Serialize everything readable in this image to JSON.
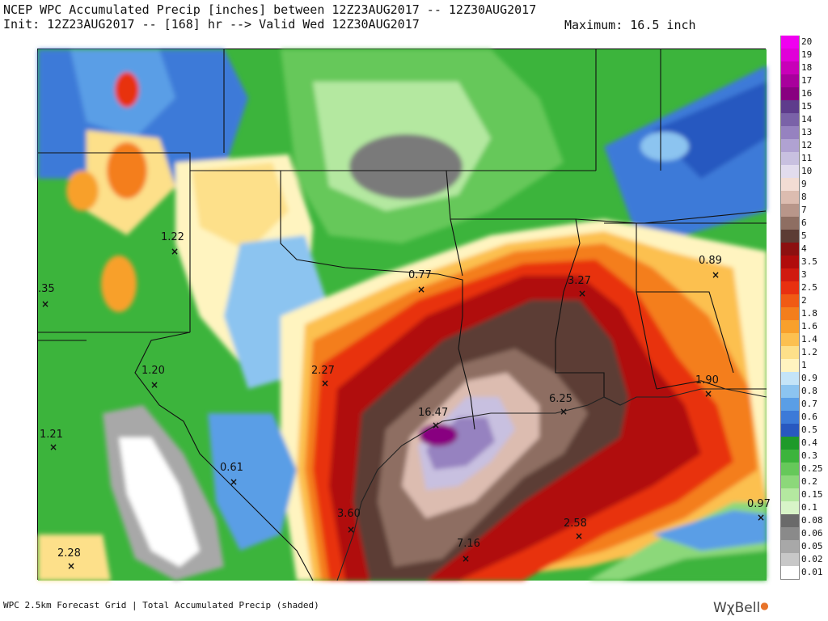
{
  "header": {
    "line1": "NCEP WPC Accumulated Precip [inches] between 12Z23AUG2017 -- 12Z30AUG2017",
    "line2": "Init: 12Z23AUG2017 -- [168] hr --> Valid Wed 12Z30AUG2017",
    "maximum": "Maximum: 16.5 inch"
  },
  "footer": {
    "text": "WPC 2.5km Forecast Grid | Total Accumulated Precip (shaded)",
    "brand": "WχBell"
  },
  "legend": [
    {
      "label": "20",
      "color": "#f000f0"
    },
    {
      "label": "19",
      "color": "#e000d8"
    },
    {
      "label": "18",
      "color": "#c800b8"
    },
    {
      "label": "17",
      "color": "#a8009c"
    },
    {
      "label": "16",
      "color": "#880080"
    },
    {
      "label": "15",
      "color": "#5e3c8c"
    },
    {
      "label": "14",
      "color": "#7a62a8"
    },
    {
      "label": "13",
      "color": "#9682c0"
    },
    {
      "label": "12",
      "color": "#b0a2d2"
    },
    {
      "label": "11",
      "color": "#c8c0e0"
    },
    {
      "label": "10",
      "color": "#e2dcee"
    },
    {
      "label": "9",
      "color": "#f2dcd4"
    },
    {
      "label": "8",
      "color": "#dcbcb0"
    },
    {
      "label": "7",
      "color": "#b8968a"
    },
    {
      "label": "6",
      "color": "#8e6e62"
    },
    {
      "label": "5",
      "color": "#5c3c34"
    },
    {
      "label": "4",
      "color": "#8c1010"
    },
    {
      "label": "3.5",
      "color": "#b00c0c"
    },
    {
      "label": "3",
      "color": "#d01a10"
    },
    {
      "label": "2.5",
      "color": "#e83010"
    },
    {
      "label": "2",
      "color": "#f05a14"
    },
    {
      "label": "1.8",
      "color": "#f47e1c"
    },
    {
      "label": "1.6",
      "color": "#f8a02c"
    },
    {
      "label": "1.4",
      "color": "#fcc050"
    },
    {
      "label": "1.2",
      "color": "#fde08a"
    },
    {
      "label": "1",
      "color": "#fff4c0"
    },
    {
      "label": "0.9",
      "color": "#c4e4f8"
    },
    {
      "label": "0.8",
      "color": "#8cc4f0"
    },
    {
      "label": "0.7",
      "color": "#5a9ee6"
    },
    {
      "label": "0.6",
      "color": "#3c7ad8"
    },
    {
      "label": "0.5",
      "color": "#2858c0"
    },
    {
      "label": "0.4",
      "color": "#1e9a2a"
    },
    {
      "label": "0.3",
      "color": "#3cb43c"
    },
    {
      "label": "0.25",
      "color": "#66c85a"
    },
    {
      "label": "0.2",
      "color": "#8cd87a"
    },
    {
      "label": "0.15",
      "color": "#b4e8a0"
    },
    {
      "label": "0.1",
      "color": "#d8f4c8"
    },
    {
      "label": "0.08",
      "color": "#6a6a6a"
    },
    {
      "label": "0.06",
      "color": "#8a8a8a"
    },
    {
      "label": "0.05",
      "color": "#a8a8a8"
    },
    {
      "label": "0.02",
      "color": "#c8c8c8"
    },
    {
      "label": "0.01",
      "color": "#ffffff"
    }
  ],
  "points": [
    {
      "label": "1.22"
    },
    {
      "label": ".35"
    },
    {
      "label": "0.77"
    },
    {
      "label": "3.27"
    },
    {
      "label": "0.89"
    },
    {
      "label": "1.20"
    },
    {
      "label": "2.27"
    },
    {
      "label": "1.90"
    },
    {
      "label": "6.25"
    },
    {
      "label": "16.47"
    },
    {
      "label": "1.21"
    },
    {
      "label": "0.61"
    },
    {
      "label": "3.60"
    },
    {
      "label": "2.58"
    },
    {
      "label": "0.97"
    },
    {
      "label": "7.16"
    },
    {
      "label": "2.28"
    }
  ]
}
